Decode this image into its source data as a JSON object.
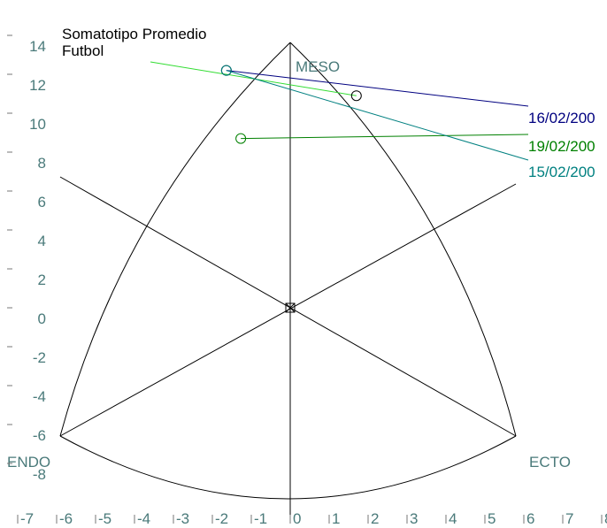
{
  "chart_data": {
    "type": "scatter",
    "title": "Somatotipo Promedio",
    "subtitle": "Futbol",
    "axis_labels": [
      "MESO",
      "ENDO",
      "ECTO"
    ],
    "xlim": [
      -7,
      8
    ],
    "ylim": [
      -11,
      15.5
    ],
    "xticks": [
      -7,
      -6,
      -5,
      -4,
      -3,
      -2,
      -1,
      0,
      1,
      2,
      3,
      4,
      5,
      6,
      7,
      8
    ],
    "yticks": [
      -8,
      -6,
      -4,
      -2,
      0,
      2,
      4,
      6,
      8,
      10,
      12,
      14
    ],
    "series": [
      {
        "color": "#33dd33",
        "marker_color": "#000000",
        "x": [
          1.7
        ],
        "y": [
          10.9
        ]
      },
      {
        "name": "16/02/200",
        "color": "#000080",
        "marker_color": "#000000",
        "x": [
          -1.64
        ],
        "y": [
          12.2
        ]
      },
      {
        "name": "19/02/200",
        "color": "#008000",
        "marker_color": "#008000",
        "x": [
          -1.27
        ],
        "y": [
          8.7
        ]
      },
      {
        "name": "15/02/200",
        "color": "#008080",
        "marker_color": "#008080",
        "x": [
          -1.64
        ],
        "y": [
          12.2
        ]
      }
    ]
  }
}
